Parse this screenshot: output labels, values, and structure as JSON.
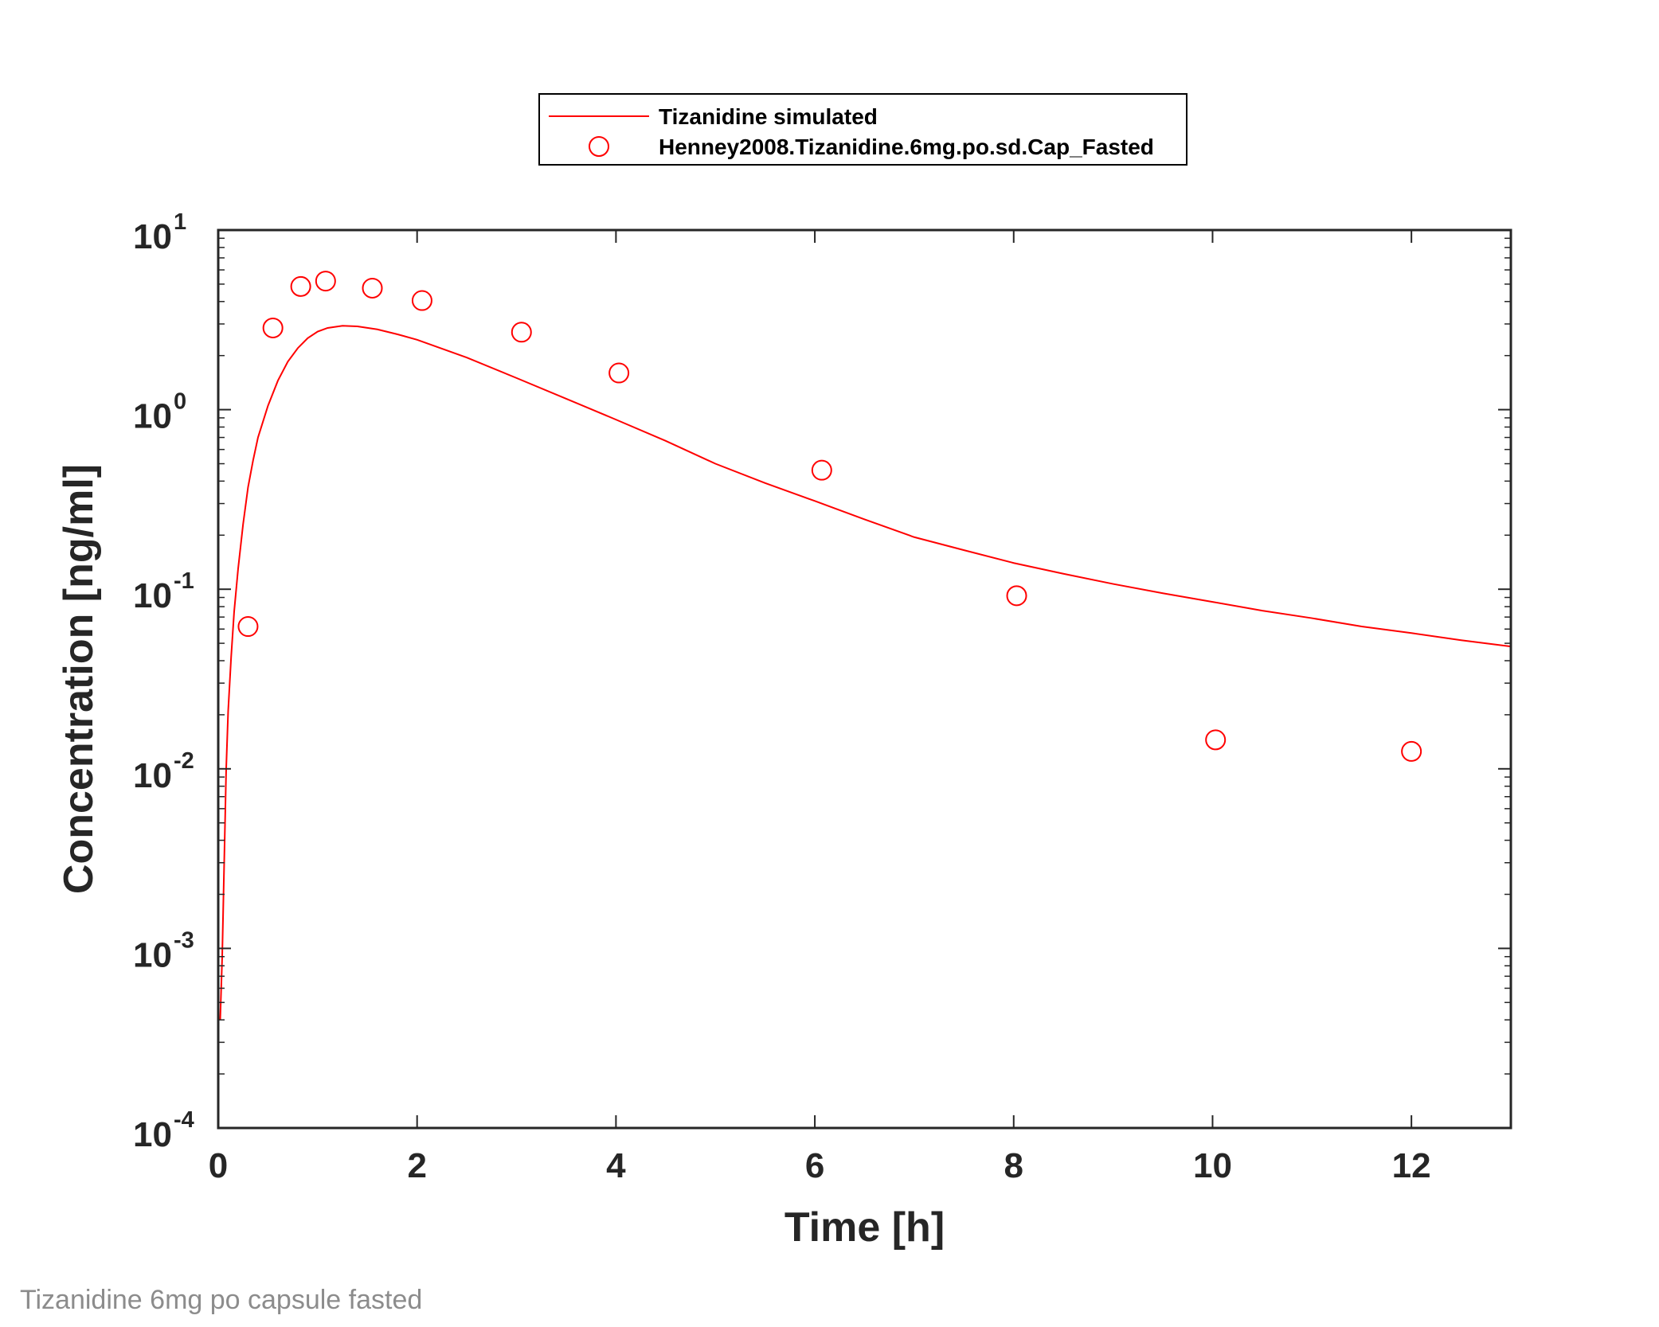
{
  "caption": "Tizanidine 6mg po capsule fasted",
  "chart_data": {
    "type": "line",
    "xlabel": "Time [h]",
    "ylabel": "Concentration [ng/ml]",
    "xlim": [
      0,
      13
    ],
    "ylim": [
      0.0001,
      10
    ],
    "yscale": "log",
    "x_ticks": [
      0,
      2,
      4,
      6,
      8,
      10,
      12
    ],
    "x_tick_labels": [
      "0",
      "2",
      "4",
      "6",
      "8",
      "10",
      "12"
    ],
    "y_ticks": [
      {
        "value": 10,
        "base": "10",
        "exp": "1"
      },
      {
        "value": 1,
        "base": "10",
        "exp": "0"
      },
      {
        "value": 0.1,
        "base": "10",
        "exp": "-1"
      },
      {
        "value": 0.01,
        "base": "10",
        "exp": "-2"
      },
      {
        "value": 0.001,
        "base": "10",
        "exp": "-3"
      },
      {
        "value": 0.0001,
        "base": "10",
        "exp": "-4"
      }
    ],
    "grid": false,
    "box": true,
    "legend_position": "top-center-outside",
    "legend": [
      {
        "label": "Tizanidine simulated",
        "marker": "line"
      },
      {
        "label": "Henney2008.Tizanidine.6mg.po.sd.Cap_Fasted",
        "marker": "circle"
      }
    ],
    "series": [
      {
        "name": "Tizanidine simulated",
        "kind": "line",
        "color": "#ff0000",
        "x": [
          0.02,
          0.04,
          0.06,
          0.08,
          0.1,
          0.13,
          0.16,
          0.2,
          0.25,
          0.3,
          0.35,
          0.4,
          0.5,
          0.6,
          0.7,
          0.8,
          0.9,
          1.0,
          1.1,
          1.25,
          1.4,
          1.6,
          1.8,
          2.0,
          2.5,
          3.0,
          3.5,
          4.0,
          4.5,
          5.0,
          5.5,
          6.0,
          6.5,
          7.0,
          7.5,
          8.0,
          8.5,
          9.0,
          9.5,
          10.0,
          10.5,
          11.0,
          11.5,
          12.0,
          12.5,
          13.0
        ],
        "y": [
          0.0004,
          0.0009,
          0.003,
          0.01,
          0.021,
          0.042,
          0.075,
          0.13,
          0.23,
          0.37,
          0.52,
          0.7,
          1.05,
          1.45,
          1.85,
          2.2,
          2.5,
          2.72,
          2.85,
          2.93,
          2.91,
          2.8,
          2.63,
          2.45,
          1.95,
          1.5,
          1.15,
          0.88,
          0.67,
          0.5,
          0.39,
          0.31,
          0.245,
          0.195,
          0.165,
          0.14,
          0.122,
          0.107,
          0.095,
          0.085,
          0.076,
          0.069,
          0.062,
          0.057,
          0.052,
          0.048
        ]
      },
      {
        "name": "Henney2008.Tizanidine.6mg.po.sd.Cap_Fasted",
        "kind": "scatter",
        "marker": "open-circle",
        "color": "#ff0000",
        "x": [
          0.3,
          0.55,
          0.83,
          1.08,
          1.55,
          2.05,
          3.05,
          4.03,
          6.07,
          8.03,
          10.03,
          12.0
        ],
        "y": [
          0.062,
          2.85,
          4.85,
          5.2,
          4.75,
          4.05,
          2.7,
          1.6,
          0.46,
          0.092,
          0.0145,
          0.0125
        ]
      }
    ],
    "colors": {
      "series": "#ff0000",
      "axes": "#262626"
    }
  }
}
